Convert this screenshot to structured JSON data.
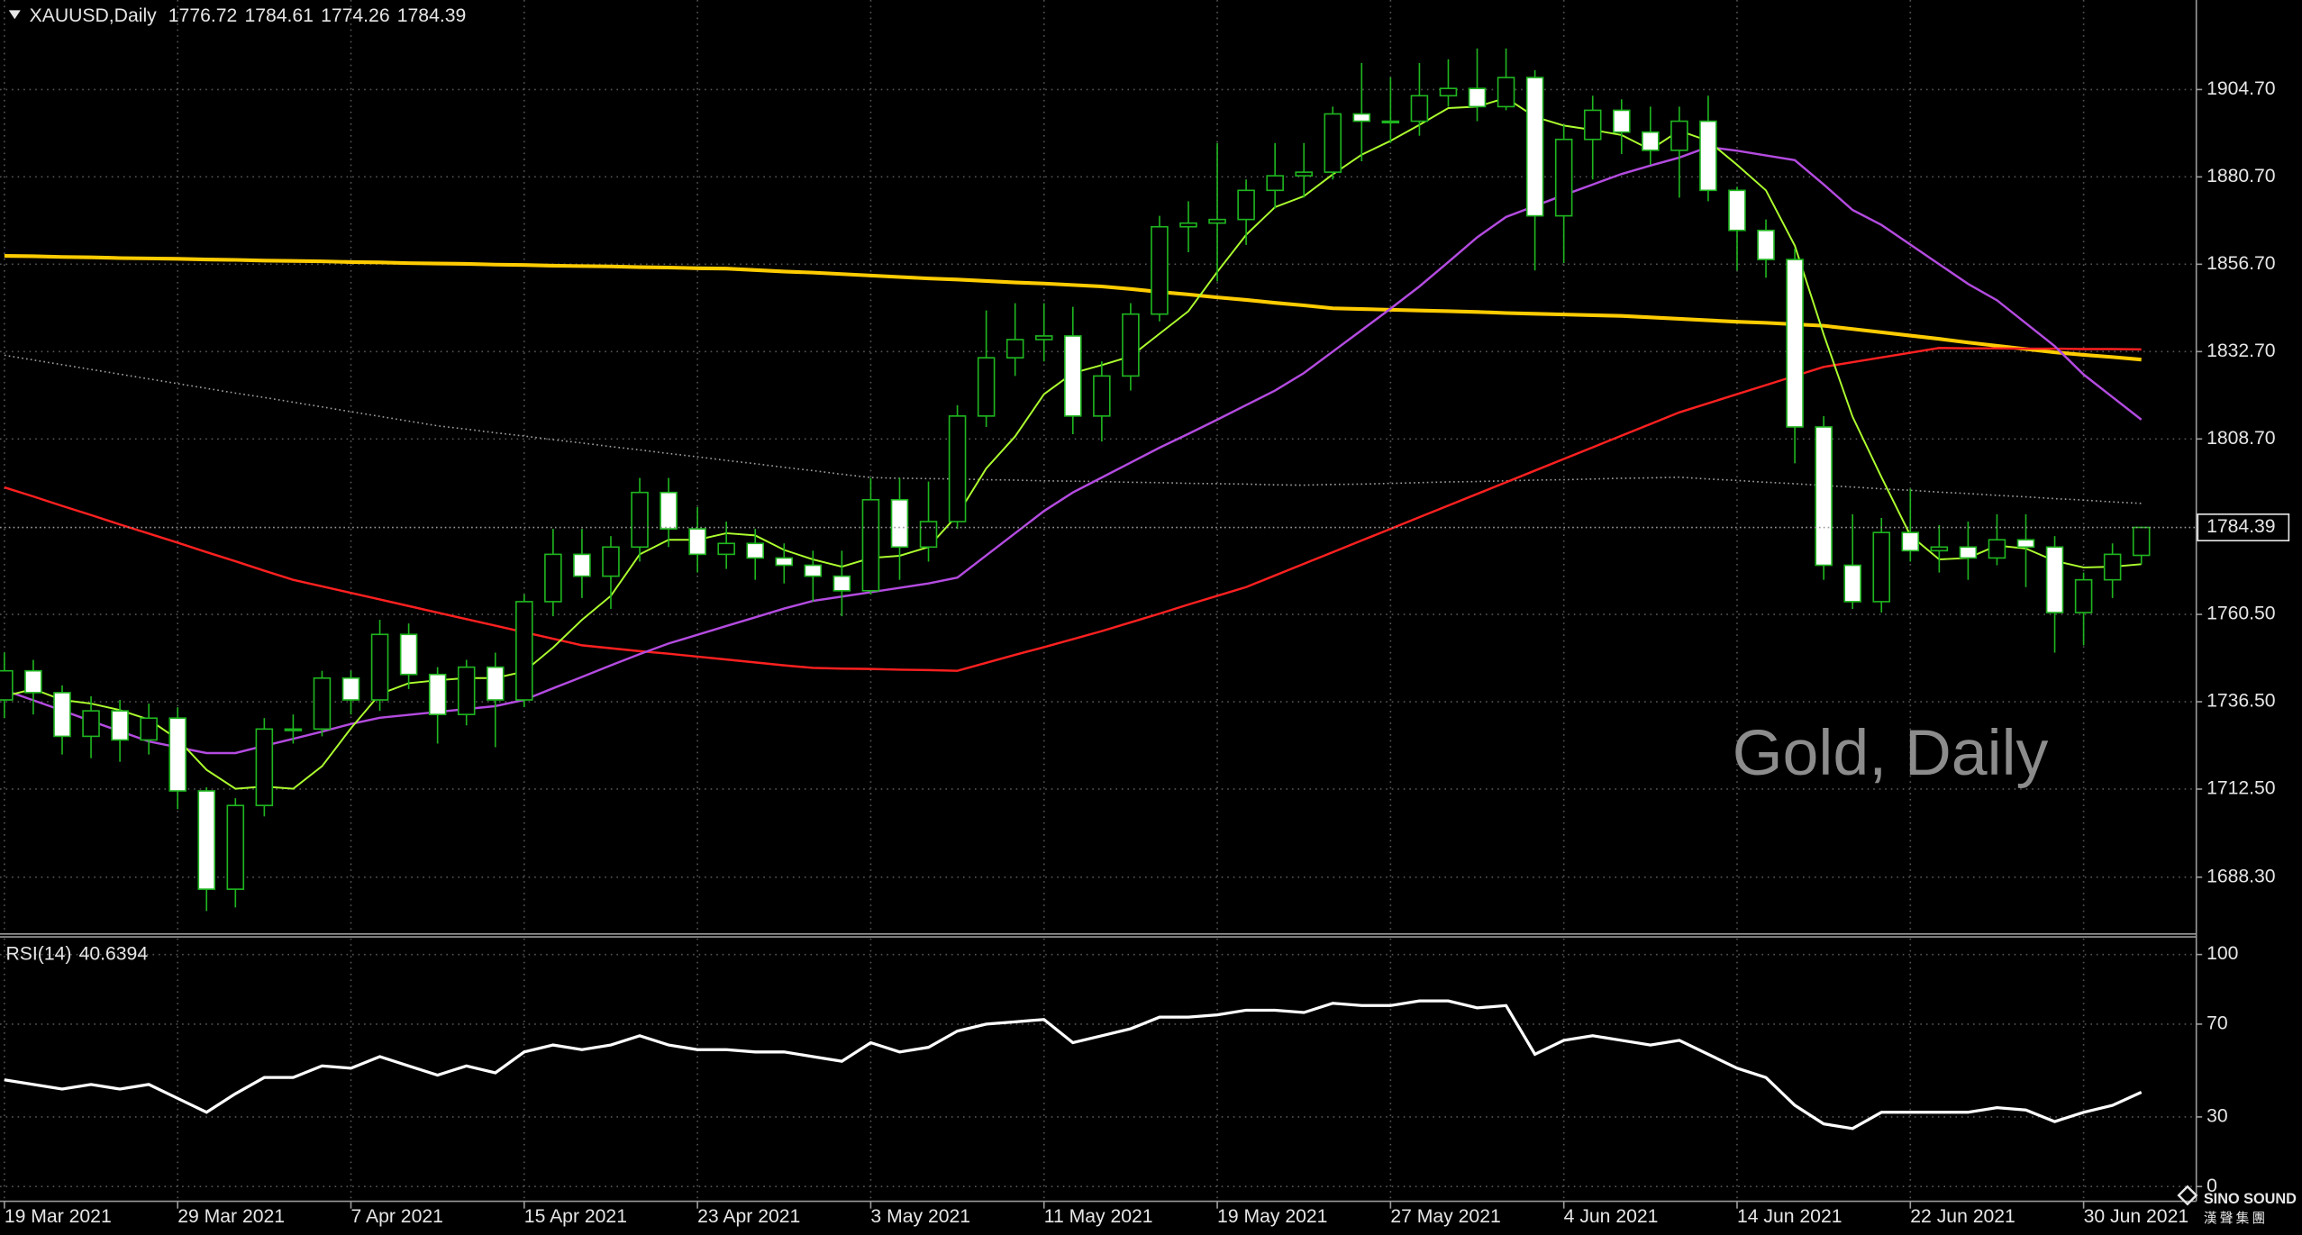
{
  "chart_data": [
    {
      "type": "candlestick",
      "title": "XAUUSD,Daily",
      "watermark": "Gold, Daily",
      "categories": [
        "19 Mar 2021",
        null,
        null,
        null,
        null,
        null,
        "29 Mar 2021",
        null,
        null,
        null,
        null,
        null,
        "7 Apr 2021",
        null,
        null,
        null,
        null,
        null,
        "15 Apr 2021",
        null,
        null,
        null,
        null,
        null,
        "23 Apr 2021",
        null,
        null,
        null,
        null,
        null,
        "3 May 2021",
        null,
        null,
        null,
        null,
        null,
        "11 May 2021",
        null,
        null,
        null,
        null,
        null,
        "19 May 2021",
        null,
        null,
        null,
        null,
        null,
        "27 May 2021",
        null,
        null,
        null,
        null,
        null,
        "4 Jun 2021",
        null,
        null,
        null,
        null,
        null,
        "14 Jun 2021",
        null,
        null,
        null,
        null,
        null,
        "22 Jun 2021",
        null,
        null,
        null,
        null,
        null,
        "30 Jun 2021",
        null,
        null
      ],
      "open": [
        1737,
        1745,
        1739,
        1727,
        1734,
        1726,
        1732,
        1712,
        1685,
        1708,
        1729,
        1729,
        1743,
        1737,
        1755,
        1744,
        1733,
        1746,
        1737,
        1764,
        1777,
        1771,
        1779,
        1794,
        1784,
        1777,
        1780,
        1776,
        1774,
        1771,
        1767,
        1792,
        1779,
        1786,
        1815,
        1831,
        1836,
        1837,
        1815,
        1826,
        1843,
        1867,
        1868,
        1869,
        1877,
        1881,
        1882,
        1898,
        1896,
        1896,
        1903,
        1905,
        1900,
        1908,
        1870,
        1891,
        1899,
        1893,
        1888,
        1896,
        1877,
        1866,
        1858,
        1812,
        1774,
        1764,
        1783,
        1778,
        1779,
        1776,
        1781,
        1779,
        1761,
        1770,
        1776.72
      ],
      "high": [
        1750,
        1748,
        1741,
        1738,
        1737,
        1736,
        1735,
        1713,
        1710,
        1732,
        1733,
        1745,
        1745,
        1759,
        1758,
        1746,
        1748,
        1750,
        1766,
        1784,
        1784,
        1782,
        1798,
        1798,
        1790,
        1786,
        1784,
        1780,
        1778,
        1778,
        1798,
        1798,
        1797,
        1818,
        1844,
        1846,
        1846,
        1845,
        1830,
        1846,
        1870,
        1874,
        1890,
        1880,
        1890,
        1890,
        1900,
        1912,
        1908,
        1912,
        1913,
        1916,
        1916,
        1910,
        1895,
        1903,
        1902,
        1900,
        1900,
        1903,
        1878,
        1869,
        1861,
        1815,
        1788,
        1787,
        1795,
        1785,
        1786,
        1788,
        1788,
        1782,
        1772,
        1780,
        1784.61
      ],
      "low": [
        1732,
        1733,
        1722,
        1721,
        1720,
        1722,
        1707,
        1679,
        1680,
        1705,
        1725,
        1727,
        1733,
        1734,
        1740,
        1725,
        1730,
        1724,
        1735,
        1760,
        1765,
        1762,
        1775,
        1779,
        1772,
        1773,
        1770,
        1769,
        1764,
        1760,
        1766,
        1770,
        1775,
        1784,
        1812,
        1826,
        1830,
        1810,
        1808,
        1822,
        1841,
        1860,
        1852,
        1862,
        1872,
        1875,
        1880,
        1885,
        1890,
        1892,
        1900,
        1896,
        1899,
        1855,
        1857,
        1880,
        1887,
        1884,
        1875,
        1874,
        1855,
        1853,
        1802,
        1770,
        1762,
        1761,
        1775,
        1772,
        1770,
        1774,
        1768,
        1750,
        1752,
        1765,
        1774.26
      ],
      "close": [
        1745,
        1739,
        1727,
        1734,
        1726,
        1732,
        1712,
        1685,
        1708,
        1729,
        1729,
        1743,
        1737,
        1755,
        1744,
        1733,
        1746,
        1737,
        1764,
        1777,
        1771,
        1779,
        1794,
        1784,
        1777,
        1780,
        1776,
        1774,
        1771,
        1767,
        1792,
        1779,
        1786,
        1815,
        1831,
        1836,
        1837,
        1815,
        1826,
        1843,
        1867,
        1868,
        1869,
        1877,
        1881,
        1882,
        1898,
        1896,
        1896,
        1903,
        1905,
        1900,
        1908,
        1870,
        1891,
        1899,
        1893,
        1888,
        1896,
        1877,
        1866,
        1858,
        1812,
        1774,
        1764,
        1783,
        1778,
        1779,
        1776,
        1781,
        1779,
        1761,
        1770,
        1777,
        1784.39
      ],
      "series": [
        {
          "color": "#ffcc00",
          "width": 2.5,
          "style": "solid",
          "values": [
            1859.0,
            1858.9,
            1858.7,
            1858.6,
            1858.4,
            1858.3,
            1858.2,
            1858.0,
            1857.9,
            1857.7,
            1857.6,
            1857.5,
            1857.3,
            1857.2,
            1857.0,
            1856.9,
            1856.8,
            1856.6,
            1856.5,
            1856.3,
            1856.2,
            1856.1,
            1855.9,
            1855.8,
            1855.6,
            1855.5,
            1855.1,
            1854.7,
            1854.4,
            1854.0,
            1853.6,
            1853.2,
            1852.8,
            1852.5,
            1852.1,
            1851.7,
            1851.4,
            1851.0,
            1850.6,
            1849.9,
            1849.1,
            1848.4,
            1847.6,
            1846.9,
            1846.1,
            1845.4,
            1844.6,
            1844.4,
            1844.2,
            1844.0,
            1843.8,
            1843.6,
            1843.3,
            1843.1,
            1842.9,
            1842.7,
            1842.5,
            1842.1,
            1841.7,
            1841.3,
            1840.9,
            1840.6,
            1840.2,
            1839.8,
            1838.9,
            1838.0,
            1837.1,
            1836.2,
            1835.2,
            1834.3,
            1833.4,
            1832.5,
            1831.8,
            1831.2,
            1830.5
          ]
        },
        {
          "color": "#a0a0a0",
          "width": 1,
          "style": "dotted",
          "values": [
            1831.7,
            1830.4,
            1829.1,
            1827.8,
            1826.5,
            1825.2,
            1823.9,
            1822.6,
            1821.3,
            1820.1,
            1818.8,
            1817.5,
            1816.2,
            1814.9,
            1813.6,
            1812.3,
            1811.4,
            1810.4,
            1809.5,
            1808.5,
            1807.6,
            1806.6,
            1805.7,
            1804.7,
            1803.8,
            1802.8,
            1801.9,
            1800.9,
            1800.0,
            1799.0,
            1798.1,
            1797.9,
            1797.8,
            1797.7,
            1797.5,
            1797.4,
            1797.2,
            1797.1,
            1797.0,
            1796.8,
            1796.7,
            1796.5,
            1796.4,
            1796.3,
            1796.1,
            1796.0,
            1796.2,
            1796.3,
            1796.5,
            1796.7,
            1796.9,
            1797.0,
            1797.2,
            1797.4,
            1797.5,
            1797.7,
            1797.9,
            1798.0,
            1798.2,
            1797.7,
            1797.3,
            1796.8,
            1796.4,
            1795.9,
            1795.5,
            1795.0,
            1794.6,
            1794.1,
            1793.7,
            1793.2,
            1792.8,
            1792.3,
            1791.9,
            1791.4,
            1791.0
          ]
        },
        {
          "color": "#ff2020",
          "width": 1.5,
          "style": "solid",
          "values": [
            1795.4,
            1792.9,
            1790.3,
            1787.8,
            1785.2,
            1782.7,
            1780.2,
            1777.6,
            1775.1,
            1772.5,
            1770.0,
            1768.2,
            1766.4,
            1764.6,
            1762.8,
            1761.0,
            1759.2,
            1757.4,
            1755.6,
            1753.8,
            1752.0,
            1751.2,
            1750.4,
            1749.7,
            1748.9,
            1748.1,
            1747.3,
            1746.5,
            1745.8,
            1745.6,
            1745.5,
            1745.3,
            1745.2,
            1745.0,
            1747.2,
            1749.4,
            1751.5,
            1753.7,
            1755.9,
            1758.3,
            1760.7,
            1763.2,
            1765.6,
            1768.0,
            1771.2,
            1774.4,
            1777.6,
            1780.8,
            1784.0,
            1787.2,
            1790.4,
            1793.6,
            1796.8,
            1800.0,
            1803.2,
            1806.4,
            1809.6,
            1812.8,
            1816.0,
            1818.5,
            1821.0,
            1823.5,
            1826.0,
            1828.5,
            1829.8,
            1831.1,
            1832.4,
            1833.7,
            1833.6,
            1833.6,
            1833.5,
            1833.5,
            1833.4,
            1833.4,
            1833.3
          ]
        },
        {
          "color": "#b44be0",
          "width": 1.5,
          "style": "solid",
          "values": [
            1739.7,
            1736.9,
            1734.1,
            1731.2,
            1728.4,
            1725.6,
            1724.0,
            1722.4,
            1722.4,
            1724.4,
            1726.3,
            1728.3,
            1730.4,
            1732.1,
            1732.9,
            1733.7,
            1734.5,
            1735.3,
            1737.0,
            1740.2,
            1743.3,
            1746.5,
            1749.6,
            1752.5,
            1754.9,
            1757.3,
            1759.7,
            1762.1,
            1764.2,
            1765.4,
            1766.6,
            1767.8,
            1769.0,
            1770.6,
            1776.7,
            1782.8,
            1788.9,
            1794.0,
            1798.1,
            1802.2,
            1806.3,
            1810.1,
            1814.0,
            1818.0,
            1822.0,
            1826.8,
            1832.7,
            1838.6,
            1844.5,
            1850.6,
            1857.3,
            1864.1,
            1869.7,
            1872.7,
            1875.7,
            1878.6,
            1881.5,
            1883.8,
            1886.0,
            1888.9,
            1887.9,
            1886.6,
            1885.3,
            1878.6,
            1871.6,
            1867.5,
            1862.1,
            1856.7,
            1851.3,
            1846.8,
            1840.5,
            1834.2,
            1826.4,
            1820.2,
            1814.0
          ]
        },
        {
          "color": "#adff2f",
          "width": 1.2,
          "style": "solid",
          "values": [
            1738,
            1740,
            1737,
            1736,
            1734.2,
            1731.6,
            1726.2,
            1717.8,
            1712.6,
            1713.2,
            1712.6,
            1718.8,
            1729.2,
            1738.6,
            1741.6,
            1742.4,
            1743,
            1743,
            1744.8,
            1751.4,
            1759,
            1765.6,
            1777,
            1781,
            1781,
            1782.8,
            1782.2,
            1778.2,
            1775.6,
            1773.6,
            1776,
            1776.6,
            1779,
            1787.8,
            1800.6,
            1809.4,
            1821,
            1826.8,
            1829,
            1831.4,
            1837.6,
            1843.8,
            1854.6,
            1864.8,
            1872.4,
            1875.4,
            1881.4,
            1886.8,
            1890.6,
            1895,
            1899.6,
            1900,
            1902.4,
            1897.2,
            1894.8,
            1893.6,
            1892.2,
            1888.2,
            1893.4,
            1890.6,
            1884,
            1877,
            1861.8,
            1837.4,
            1814.8,
            1798.2,
            1782.2,
            1775.6,
            1776,
            1779.4,
            1778.6,
            1775.2,
            1773.4,
            1773.6,
            1774.3
          ]
        }
      ],
      "ylim": [
        1672.7,
        1929.3
      ],
      "yticks": [
        {
          "value": 1904.7,
          "label": "1904.70"
        },
        {
          "value": 1880.7,
          "label": "1880.70"
        },
        {
          "value": 1856.7,
          "label": "1856.70"
        },
        {
          "value": 1832.7,
          "label": "1832.70"
        },
        {
          "value": 1808.7,
          "label": "1808.70"
        },
        {
          "value": 1760.5,
          "label": "1760.50"
        },
        {
          "value": 1736.5,
          "label": "1736.50"
        },
        {
          "value": 1712.5,
          "label": "1712.50"
        },
        {
          "value": 1688.3,
          "label": "1688.30"
        }
      ],
      "grid": true,
      "bull_color": "#000000",
      "bear_color": "#ffffff",
      "wick_color": "#1fb51f"
    },
    {
      "type": "line",
      "title": "RSI(14)",
      "color": "#ffffff",
      "values": [
        46,
        44,
        42,
        44,
        42,
        44,
        38,
        32,
        40,
        47,
        47,
        52,
        51,
        56,
        52,
        48,
        52,
        49,
        58,
        61,
        59,
        61,
        65,
        61,
        59,
        59,
        58,
        58,
        56,
        54,
        62,
        58,
        60,
        67,
        70,
        71,
        72,
        62,
        65,
        68,
        73,
        73,
        74,
        76,
        76,
        75,
        79,
        78,
        78,
        80,
        80,
        77,
        78,
        57,
        63,
        65,
        63,
        61,
        63,
        57,
        51,
        47,
        35,
        27,
        25,
        32,
        32,
        32,
        32,
        34,
        33,
        28,
        32,
        35,
        40.6394
      ],
      "ylim": [
        0,
        100
      ],
      "yticks": [
        100,
        70,
        30,
        0
      ],
      "grid": true
    }
  ],
  "logo": {
    "name": "SINO SOUND",
    "subtitle": "漢聲集團"
  }
}
